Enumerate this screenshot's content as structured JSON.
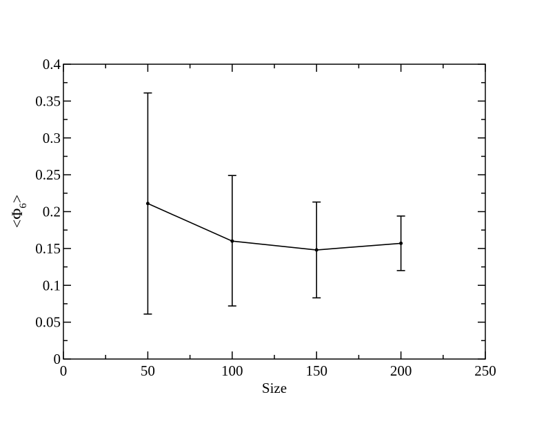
{
  "chart_data": {
    "type": "line",
    "title": "",
    "xlabel": "Size",
    "ylabel_main": "<Φ",
    "ylabel_sub": "6",
    "ylabel_end": ">",
    "xlim": [
      0,
      250
    ],
    "ylim": [
      0,
      0.4
    ],
    "x_major_ticks": [
      0,
      50,
      100,
      150,
      200,
      250
    ],
    "x_minor_ticks": [
      25,
      75,
      125,
      175,
      225
    ],
    "y_major_ticks": [
      0,
      0.05,
      0.1,
      0.15,
      0.2,
      0.25,
      0.3,
      0.35,
      0.4
    ],
    "y_minor_ticks": [
      0.025,
      0.075,
      0.125,
      0.175,
      0.225,
      0.275,
      0.325,
      0.375
    ],
    "x_tick_labels": [
      "0",
      "50",
      "100",
      "150",
      "200",
      "250"
    ],
    "y_tick_labels": [
      "0",
      "0.05",
      "0.1",
      "0.15",
      "0.2",
      "0.25",
      "0.3",
      "0.35",
      "0.4"
    ],
    "grid": false,
    "series": [
      {
        "color": "#000000",
        "x": [
          50,
          100,
          150,
          200
        ],
        "y": [
          0.211,
          0.16,
          0.148,
          0.157
        ],
        "y_lower": [
          0.061,
          0.072,
          0.083,
          0.12
        ],
        "y_upper": [
          0.361,
          0.249,
          0.213,
          0.194
        ]
      }
    ]
  }
}
